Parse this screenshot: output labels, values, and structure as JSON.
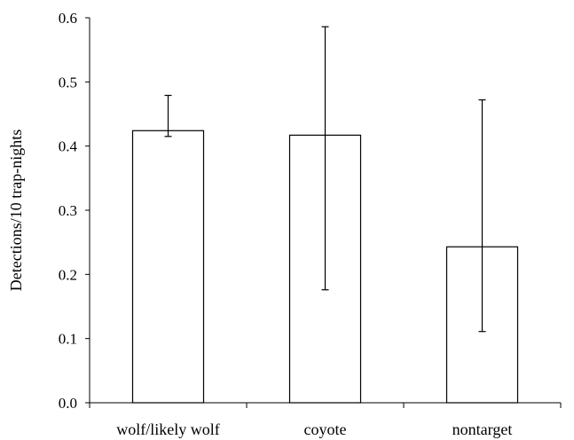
{
  "chart_data": {
    "type": "bar",
    "title": "",
    "xlabel": "",
    "ylabel": "Detections/10 trap-nights",
    "ylim": [
      0,
      0.6
    ],
    "yticks": [
      0.0,
      0.1,
      0.2,
      0.3,
      0.4,
      0.5,
      0.6
    ],
    "ytick_labels": [
      "0.0",
      "0.1",
      "0.2",
      "0.3",
      "0.4",
      "0.5",
      "0.6"
    ],
    "categories": [
      "wolf/likely wolf",
      "coyote",
      "nontarget"
    ],
    "values": [
      0.424,
      0.417,
      0.243
    ],
    "error_low": [
      0.415,
      0.176,
      0.111
    ],
    "error_high": [
      0.479,
      0.586,
      0.472
    ],
    "grid": false,
    "legend": "none",
    "colors": {
      "bar_fill": "#ffffff",
      "bar_stroke": "#000000",
      "axis": "#000000"
    }
  }
}
